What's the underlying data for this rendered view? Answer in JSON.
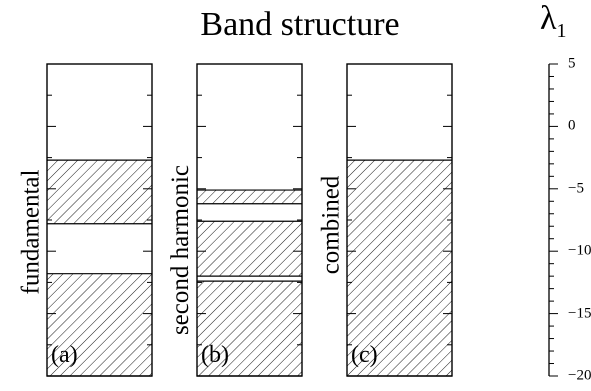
{
  "title": "Band structure",
  "axis": {
    "symbol": "λ",
    "subscript": "1",
    "ticks": [
      "5",
      "0",
      "−5",
      "−10",
      "−15",
      "−20"
    ],
    "range": [
      -20,
      5
    ]
  },
  "panels": [
    {
      "label": "(a)",
      "side_label": "fundamental",
      "bands": [
        {
          "from": -20,
          "to": -11.8
        },
        {
          "from": -7.8,
          "to": -2.7
        }
      ]
    },
    {
      "label": "(b)",
      "side_label": "second harmonic",
      "bands": [
        {
          "from": -20,
          "to": -12.4
        },
        {
          "from": -12.0,
          "to": -7.6
        },
        {
          "from": -6.2,
          "to": -5.1
        }
      ]
    },
    {
      "label": "(c)",
      "side_label": "combined",
      "bands": [
        {
          "from": -20,
          "to": -2.7
        }
      ]
    }
  ],
  "colors": {
    "line": "#000000",
    "hatch": "#000000",
    "background": "#ffffff"
  }
}
